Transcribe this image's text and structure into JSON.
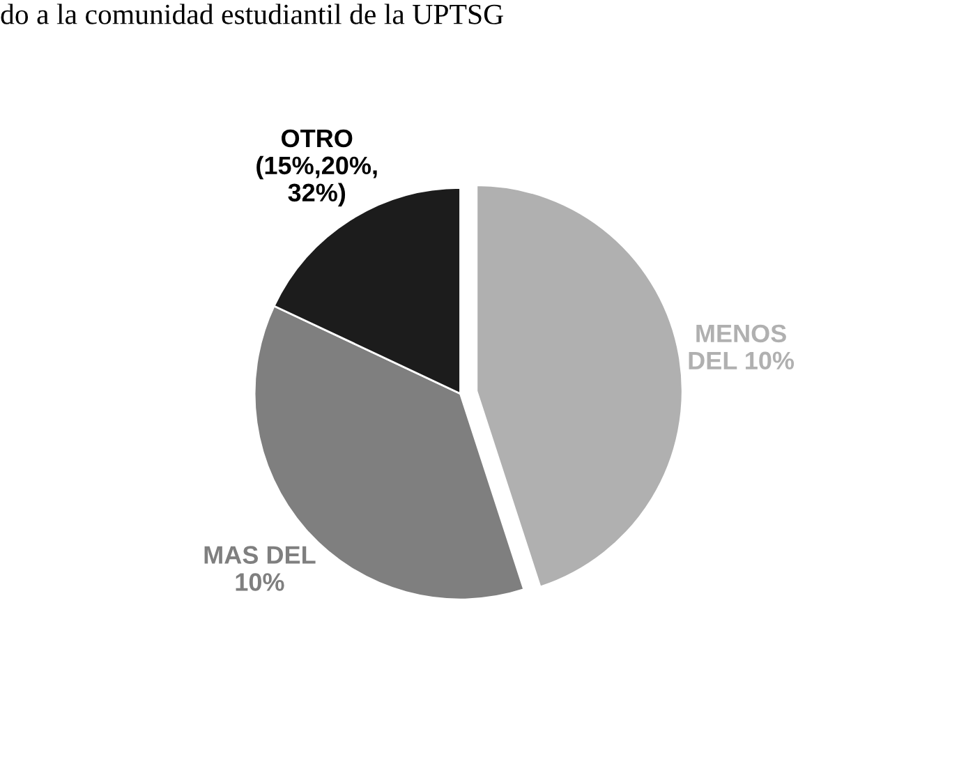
{
  "chart_data": {
    "type": "pie",
    "title": "do a la comunidad estudiantil de la UPTSG",
    "categories": [
      "MENOS\nDEL 10%",
      "MAS DEL\n10%",
      "OTRO\n(15%,20%,\n32%)"
    ],
    "values": [
      45,
      37,
      18
    ],
    "colors": [
      "#b0b0b0",
      "#7f7f7f",
      "#1c1c1c"
    ],
    "legend": false
  }
}
